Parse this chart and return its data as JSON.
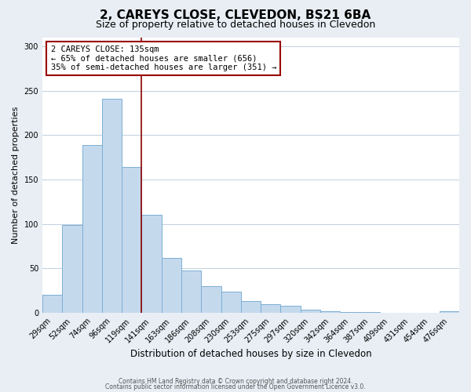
{
  "title": "2, CAREYS CLOSE, CLEVEDON, BS21 6BA",
  "subtitle": "Size of property relative to detached houses in Clevedon",
  "xlabel": "Distribution of detached houses by size in Clevedon",
  "ylabel": "Number of detached properties",
  "bin_labels": [
    "29sqm",
    "52sqm",
    "74sqm",
    "96sqm",
    "119sqm",
    "141sqm",
    "163sqm",
    "186sqm",
    "208sqm",
    "230sqm",
    "253sqm",
    "275sqm",
    "297sqm",
    "320sqm",
    "342sqm",
    "364sqm",
    "387sqm",
    "409sqm",
    "431sqm",
    "454sqm",
    "476sqm"
  ],
  "bar_values": [
    20,
    99,
    189,
    241,
    164,
    110,
    62,
    48,
    30,
    24,
    13,
    10,
    8,
    4,
    2,
    1,
    1,
    0,
    0,
    0,
    2
  ],
  "bar_color": "#c5d9ed",
  "bar_edge_color": "#7bafd4",
  "vline_color": "#8b0000",
  "ylim": [
    0,
    310
  ],
  "yticks": [
    0,
    50,
    100,
    150,
    200,
    250,
    300
  ],
  "annotation_title": "2 CAREYS CLOSE: 135sqm",
  "annotation_line1": "← 65% of detached houses are smaller (656)",
  "annotation_line2": "35% of semi-detached houses are larger (351) →",
  "annotation_box_color": "#ffffff",
  "annotation_box_edge": "#990000",
  "footer_line1": "Contains HM Land Registry data © Crown copyright and database right 2024.",
  "footer_line2": "Contains public sector information licensed under the Open Government Licence v3.0.",
  "background_color": "#e8eef4",
  "plot_background": "#ffffff",
  "grid_color": "#c0cfe0",
  "title_fontsize": 11,
  "subtitle_fontsize": 9,
  "xlabel_fontsize": 8.5,
  "ylabel_fontsize": 8,
  "tick_fontsize": 7,
  "annot_fontsize": 7.5,
  "footer_fontsize": 5.5
}
